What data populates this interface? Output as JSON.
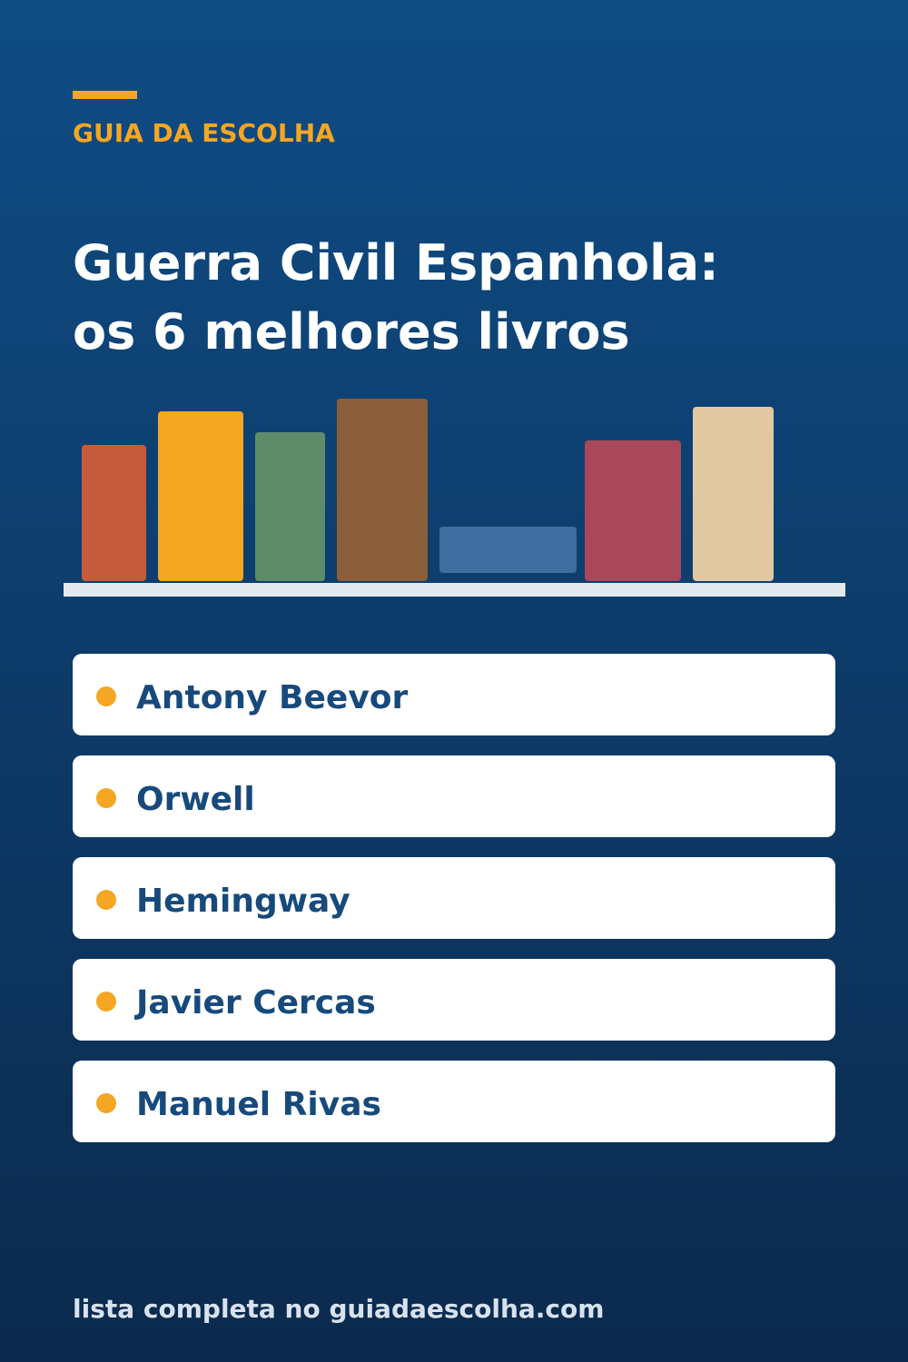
{
  "header": {
    "brand": "GUIA DA ESCOLHA",
    "title": [
      "Guerra Civil Espanhola:",
      "os 6 melhores livros"
    ]
  },
  "list": {
    "items": [
      "Antony Beevor",
      "Orwell",
      "Hemingway",
      "Javier Cercas",
      "Manuel Rivas"
    ]
  },
  "footer": {
    "text": "lista completa no guiadaescolha.com"
  }
}
